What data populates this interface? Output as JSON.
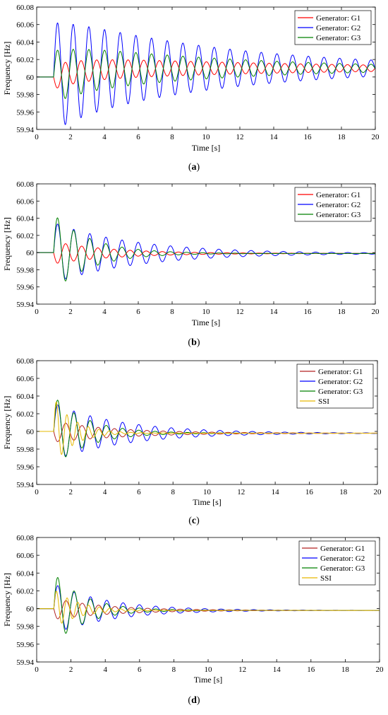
{
  "chart_data": [
    {
      "type": "line",
      "label": "(a)",
      "xlabel": "Time [s]",
      "ylabel": "Frequency [Hz]",
      "xlim": [
        0,
        20
      ],
      "ylim": [
        59.94,
        60.08
      ],
      "xticks": [
        "0",
        "2",
        "4",
        "6",
        "8",
        "10",
        "12",
        "14",
        "16",
        "18",
        "20"
      ],
      "yticks": [
        "59.94",
        "59.96",
        "59.98",
        "60",
        "60.02",
        "60.04",
        "60.06",
        "60.08"
      ],
      "legend_position": "top-right",
      "series": [
        {
          "name": "Generator: G1",
          "color": "#ff0000",
          "base": 60.0,
          "final": 60.01,
          "amp": 0.014,
          "decay": 0.07,
          "freq": 1.08,
          "phase": 3.14159
        },
        {
          "name": "Generator: G2",
          "color": "#0000ff",
          "base": 60.0,
          "final": 60.01,
          "amp": 0.062,
          "decay": 0.1,
          "freq": 1.08,
          "phase": 0
        },
        {
          "name": "Generator: G3",
          "color": "#008000",
          "base": 60.0,
          "final": 60.01,
          "amp": 0.03,
          "decay": 0.1,
          "freq": 1.08,
          "phase": 0
        }
      ]
    },
    {
      "type": "line",
      "label": "(b)",
      "xlabel": "Time [s]",
      "ylabel": "Frequency [Hz]",
      "xlim": [
        0,
        20
      ],
      "ylim": [
        59.94,
        60.08
      ],
      "xticks": [
        "0",
        "2",
        "4",
        "6",
        "8",
        "10",
        "12",
        "14",
        "16",
        "18",
        "20"
      ],
      "yticks": [
        "59.94",
        "59.96",
        "59.98",
        "60",
        "60.02",
        "60.04",
        "60.06",
        "60.08"
      ],
      "legend_position": "top-right",
      "series": [
        {
          "name": "Generator: G1",
          "color": "#ff0000",
          "base": 60.0,
          "final": 59.999,
          "amp": 0.013,
          "decay": 0.28,
          "freq": 1.05,
          "phase": 3.14159
        },
        {
          "name": "Generator: G2",
          "color": "#0000ff",
          "base": 60.0,
          "final": 59.999,
          "amp": 0.035,
          "decay": 0.2,
          "freq": 1.05,
          "phase": 0
        },
        {
          "name": "Generator: G3",
          "color": "#008000",
          "base": 60.0,
          "final": 59.999,
          "amp": 0.045,
          "decay": 0.45,
          "freq": 1.05,
          "phase": 0
        }
      ]
    },
    {
      "type": "line",
      "label": "(c)",
      "xlabel": "Time [s]",
      "ylabel": "Frequency [Hz]",
      "xlim": [
        0,
        20
      ],
      "ylim": [
        59.94,
        60.08
      ],
      "xticks": [
        "0",
        "2",
        "4",
        "6",
        "8",
        "10",
        "12",
        "14",
        "16",
        "18",
        "20"
      ],
      "yticks": [
        "59.94",
        "59.96",
        "59.98",
        "60",
        "60.02",
        "60.04",
        "60.06",
        "60.08"
      ],
      "legend_position": "top-right",
      "series": [
        {
          "name": "Generator: G1",
          "color": "#b22222",
          "base": 60.0,
          "final": 59.998,
          "amp": 0.012,
          "decay": 0.25,
          "freq": 1.05,
          "phase": 3.14159
        },
        {
          "name": "Generator: G2",
          "color": "#0000ff",
          "base": 60.0,
          "final": 59.998,
          "amp": 0.032,
          "decay": 0.24,
          "freq": 1.05,
          "phase": 0
        },
        {
          "name": "Generator: G3",
          "color": "#008000",
          "base": 60.0,
          "final": 59.998,
          "amp": 0.04,
          "decay": 0.5,
          "freq": 1.05,
          "phase": 0
        },
        {
          "name": "SSI",
          "color": "#e6b800",
          "base": 60.0,
          "final": 59.998,
          "amp": 0.038,
          "decay": 0.85,
          "freq": 1.6,
          "phase": 0
        }
      ]
    },
    {
      "type": "line",
      "label": "(d)",
      "xlabel": "Time [s]",
      "ylabel": "Frequency [Hz]",
      "xlim": [
        0,
        20
      ],
      "ylim": [
        59.94,
        60.08
      ],
      "xticks": [
        "0",
        "2",
        "4",
        "6",
        "8",
        "10",
        "12",
        "14",
        "16",
        "18",
        "20"
      ],
      "yticks": [
        "59.94",
        "59.96",
        "59.98",
        "60",
        "60.02",
        "60.04",
        "60.06",
        "60.08"
      ],
      "legend_position": "top-right",
      "series": [
        {
          "name": "Generator: G1",
          "color": "#b22222",
          "base": 60.0,
          "final": 59.998,
          "amp": 0.012,
          "decay": 0.3,
          "freq": 1.05,
          "phase": 3.14159
        },
        {
          "name": "Generator: G2",
          "color": "#0000ff",
          "base": 60.0,
          "final": 59.998,
          "amp": 0.028,
          "decay": 0.3,
          "freq": 1.05,
          "phase": 0
        },
        {
          "name": "Generator: G3",
          "color": "#008000",
          "base": 60.0,
          "final": 59.998,
          "amp": 0.04,
          "decay": 0.55,
          "freq": 1.05,
          "phase": 0
        },
        {
          "name": "SSI",
          "color": "#e6b800",
          "base": 60.0,
          "final": 59.998,
          "amp": 0.022,
          "decay": 0.7,
          "freq": 1.6,
          "phase": 0
        }
      ]
    }
  ]
}
